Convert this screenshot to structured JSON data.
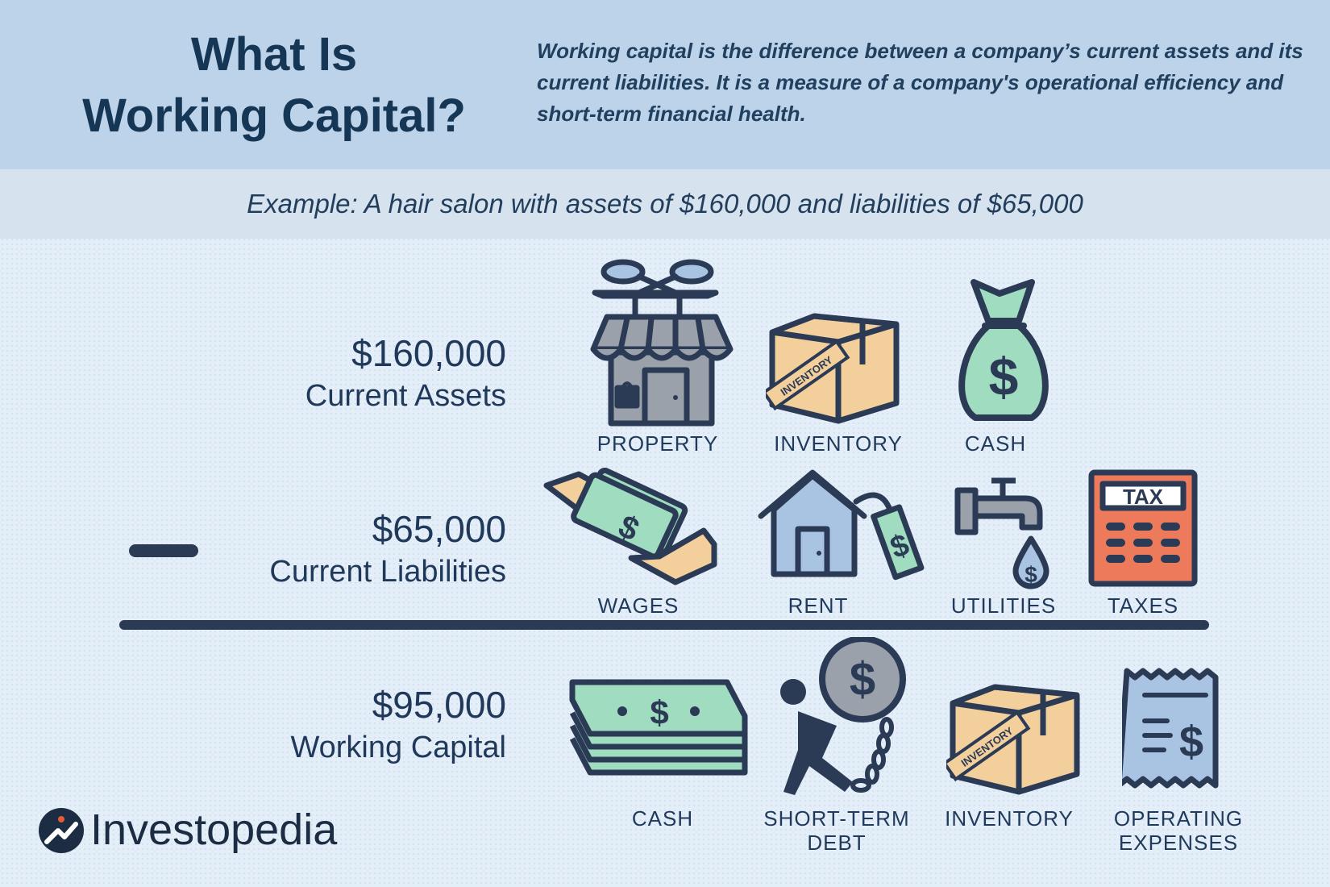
{
  "header": {
    "title_line1": "What Is",
    "title_line2": "Working Capital?",
    "description": "Working capital is the difference between a company’s current assets and its current liabilities. It is a measure of a company's operational efficiency and short-term financial health."
  },
  "example": "Example: A hair salon with assets of $160,000 and liabilities of $65,000",
  "rows": {
    "assets": {
      "amount": "$160,000",
      "label": "Current Assets",
      "items": [
        "PROPERTY",
        "INVENTORY",
        "CASH"
      ]
    },
    "liabilities": {
      "amount": "$65,000",
      "label": "Current Liabilities",
      "items": [
        "WAGES",
        "RENT",
        "UTILITIES",
        "TAXES"
      ]
    },
    "working_capital": {
      "amount": "$95,000",
      "label": "Working Capital",
      "items": [
        "CASH",
        "SHORT-TERM",
        "DEBT",
        "INVENTORY",
        "OPERATING",
        "EXPENSES"
      ]
    }
  },
  "icon_text": {
    "inventory_stamp": "INVENTORY",
    "tax_label": "TAX",
    "dollar": "$"
  },
  "logo": {
    "text": "Investopedia"
  },
  "colors": {
    "header_bg": "#bcd3e9",
    "band_bg": "#d6e3ef",
    "page_bg": "#e4eef8",
    "ink": "#2b3a55",
    "green": "#9fdcc0",
    "tan": "#f3cf9c",
    "coral": "#ee7a5c",
    "gray": "#9aa1ab",
    "blue_gray": "#a9c4e2"
  }
}
